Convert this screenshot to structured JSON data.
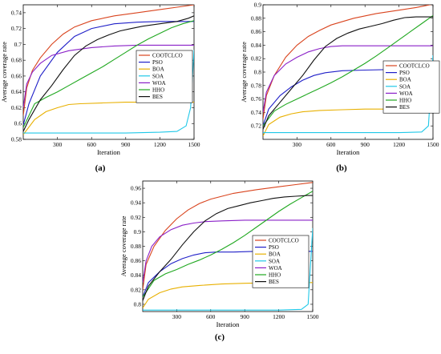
{
  "chart_data": [
    {
      "panel": "(a)",
      "type": "line",
      "xlabel": "Iteration",
      "ylabel": "Average coverage rate",
      "xlim": [
        0,
        1500
      ],
      "ylim": [
        0.58,
        0.75
      ],
      "xticks": [
        "300",
        "600",
        "900",
        "1200",
        "1500"
      ],
      "yticks": [
        "0.58",
        "0.6",
        "0.62",
        "0.64",
        "0.66",
        "0.68",
        "0.7",
        "0.72",
        "0.74"
      ],
      "legend_position": "right",
      "series": [
        {
          "name": "COOTCLCO",
          "color": "#d9441e",
          "x": [
            0,
            30,
            80,
            150,
            250,
            350,
            450,
            600,
            800,
            1000,
            1200,
            1350,
            1500
          ],
          "y": [
            0.61,
            0.645,
            0.667,
            0.683,
            0.7,
            0.713,
            0.722,
            0.73,
            0.736,
            0.74,
            0.744,
            0.747,
            0.75
          ]
        },
        {
          "name": "PSO",
          "color": "#2020c8",
          "x": [
            0,
            50,
            150,
            300,
            450,
            600,
            800,
            1000,
            1200,
            1500
          ],
          "y": [
            0.598,
            0.625,
            0.66,
            0.69,
            0.71,
            0.72,
            0.726,
            0.728,
            0.729,
            0.729
          ]
        },
        {
          "name": "BOA",
          "color": "#e8b000",
          "x": [
            0,
            100,
            200,
            300,
            400,
            500,
            700,
            900,
            1200,
            1500
          ],
          "y": [
            0.586,
            0.605,
            0.615,
            0.62,
            0.624,
            0.625,
            0.626,
            0.627,
            0.627,
            0.627
          ]
        },
        {
          "name": "SOA",
          "color": "#20c8e8",
          "x": [
            0,
            100,
            300,
            600,
            900,
            1200,
            1350,
            1430,
            1470,
            1500
          ],
          "y": [
            0.588,
            0.588,
            0.588,
            0.588,
            0.588,
            0.589,
            0.59,
            0.597,
            0.62,
            0.693
          ]
        },
        {
          "name": "WOA",
          "color": "#8a20c8",
          "x": [
            0,
            30,
            80,
            150,
            250,
            400,
            600,
            800,
            1000,
            1200,
            1500
          ],
          "y": [
            0.62,
            0.65,
            0.665,
            0.676,
            0.686,
            0.692,
            0.696,
            0.698,
            0.699,
            0.699,
            0.699
          ]
        },
        {
          "name": "HHO",
          "color": "#20a820",
          "x": [
            0,
            100,
            200,
            300,
            400,
            500,
            600,
            700,
            800,
            900,
            1000,
            1100,
            1200,
            1300,
            1400,
            1500
          ],
          "y": [
            0.595,
            0.625,
            0.633,
            0.64,
            0.648,
            0.656,
            0.664,
            0.672,
            0.681,
            0.69,
            0.699,
            0.707,
            0.714,
            0.721,
            0.726,
            0.73
          ]
        },
        {
          "name": "BES",
          "color": "#111111",
          "x": [
            0,
            50,
            150,
            250,
            350,
            450,
            550,
            650,
            750,
            850,
            950,
            1050,
            1150,
            1250,
            1350,
            1450,
            1500
          ],
          "y": [
            0.59,
            0.605,
            0.63,
            0.648,
            0.668,
            0.686,
            0.698,
            0.706,
            0.712,
            0.717,
            0.72,
            0.723,
            0.725,
            0.727,
            0.729,
            0.733,
            0.736
          ]
        }
      ]
    },
    {
      "panel": "(b)",
      "type": "line",
      "xlabel": "Iteration",
      "ylabel": "Average coverage rate",
      "xlim": [
        0,
        1500
      ],
      "ylim": [
        0.7,
        0.9
      ],
      "xticks": [
        "300",
        "600",
        "900",
        "1200",
        "1500"
      ],
      "yticks": [
        "0.72",
        "0.74",
        "0.76",
        "0.78",
        "0.8",
        "0.82",
        "0.84",
        "0.86",
        "0.88",
        "0.9"
      ],
      "legend_position": "right",
      "series": [
        {
          "name": "COOTCLCO",
          "color": "#d9441e",
          "x": [
            0,
            30,
            100,
            200,
            300,
            400,
            500,
            600,
            800,
            1000,
            1200,
            1350,
            1500
          ],
          "y": [
            0.73,
            0.765,
            0.795,
            0.822,
            0.84,
            0.853,
            0.862,
            0.87,
            0.88,
            0.887,
            0.892,
            0.896,
            0.901
          ]
        },
        {
          "name": "PSO",
          "color": "#2020c8",
          "x": [
            0,
            50,
            150,
            250,
            350,
            450,
            550,
            700,
            900,
            1200,
            1500
          ],
          "y": [
            0.72,
            0.745,
            0.765,
            0.778,
            0.788,
            0.795,
            0.799,
            0.802,
            0.803,
            0.804,
            0.804
          ]
        },
        {
          "name": "BOA",
          "color": "#e8b000",
          "x": [
            0,
            50,
            150,
            250,
            350,
            500,
            700,
            900,
            1200,
            1500
          ],
          "y": [
            0.705,
            0.722,
            0.733,
            0.738,
            0.741,
            0.743,
            0.744,
            0.745,
            0.745,
            0.745
          ]
        },
        {
          "name": "SOA",
          "color": "#20c8e8",
          "x": [
            0,
            100,
            400,
            800,
            1200,
            1400,
            1460,
            1500
          ],
          "y": [
            0.71,
            0.71,
            0.71,
            0.71,
            0.71,
            0.711,
            0.72,
            0.825
          ]
        },
        {
          "name": "WOA",
          "color": "#8a20c8",
          "x": [
            0,
            30,
            100,
            200,
            300,
            400,
            500,
            600,
            700,
            900,
            1200,
            1500
          ],
          "y": [
            0.74,
            0.77,
            0.795,
            0.812,
            0.822,
            0.83,
            0.835,
            0.838,
            0.839,
            0.839,
            0.839,
            0.839
          ]
        },
        {
          "name": "HHO",
          "color": "#20a820",
          "x": [
            0,
            100,
            200,
            300,
            400,
            500,
            600,
            700,
            800,
            900,
            1000,
            1100,
            1200,
            1300,
            1400,
            1500
          ],
          "y": [
            0.72,
            0.742,
            0.752,
            0.76,
            0.768,
            0.776,
            0.784,
            0.793,
            0.803,
            0.813,
            0.824,
            0.836,
            0.848,
            0.86,
            0.872,
            0.884
          ]
        },
        {
          "name": "BES",
          "color": "#111111",
          "x": [
            0,
            50,
            150,
            250,
            350,
            450,
            550,
            650,
            750,
            850,
            950,
            1050,
            1150,
            1250,
            1350,
            1450,
            1500
          ],
          "y": [
            0.715,
            0.735,
            0.755,
            0.775,
            0.795,
            0.818,
            0.838,
            0.85,
            0.858,
            0.864,
            0.868,
            0.872,
            0.877,
            0.881,
            0.882,
            0.882,
            0.882
          ]
        }
      ]
    },
    {
      "panel": "(c)",
      "type": "line",
      "xlabel": "Iteration",
      "ylabel": "Average coverage rate",
      "xlim": [
        0,
        1500
      ],
      "ylim": [
        0.79,
        0.97
      ],
      "xticks": [
        "300",
        "600",
        "900",
        "1200",
        "1500"
      ],
      "yticks": [
        "0.8",
        "0.82",
        "0.84",
        "0.86",
        "0.88",
        "0.9",
        "0.92",
        "0.94",
        "0.96"
      ],
      "legend_position": "right",
      "series": [
        {
          "name": "COOTCLCO",
          "color": "#d9441e",
          "x": [
            0,
            30,
            100,
            200,
            300,
            400,
            500,
            600,
            800,
            1000,
            1200,
            1350,
            1500
          ],
          "y": [
            0.82,
            0.855,
            0.88,
            0.902,
            0.918,
            0.93,
            0.939,
            0.945,
            0.953,
            0.958,
            0.962,
            0.965,
            0.968
          ]
        },
        {
          "name": "PSO",
          "color": "#2020c8",
          "x": [
            0,
            50,
            150,
            250,
            350,
            450,
            550,
            650,
            800,
            1000,
            1200,
            1500
          ],
          "y": [
            0.81,
            0.83,
            0.845,
            0.856,
            0.863,
            0.868,
            0.871,
            0.872,
            0.872,
            0.873,
            0.873,
            0.873
          ]
        },
        {
          "name": "BOA",
          "color": "#e8b000",
          "x": [
            0,
            50,
            150,
            250,
            350,
            500,
            700,
            900,
            1200,
            1500
          ],
          "y": [
            0.795,
            0.807,
            0.816,
            0.821,
            0.824,
            0.826,
            0.828,
            0.829,
            0.83,
            0.83
          ]
        },
        {
          "name": "SOA",
          "color": "#20c8e8",
          "x": [
            0,
            100,
            400,
            800,
            1200,
            1400,
            1460,
            1500
          ],
          "y": [
            0.792,
            0.792,
            0.792,
            0.792,
            0.792,
            0.793,
            0.8,
            0.905
          ]
        },
        {
          "name": "WOA",
          "color": "#8a20c8",
          "x": [
            0,
            30,
            80,
            150,
            250,
            350,
            450,
            550,
            700,
            900,
            1200,
            1500
          ],
          "y": [
            0.83,
            0.86,
            0.88,
            0.893,
            0.903,
            0.909,
            0.912,
            0.914,
            0.915,
            0.916,
            0.916,
            0.916
          ]
        },
        {
          "name": "HHO",
          "color": "#20a820",
          "x": [
            0,
            100,
            200,
            300,
            400,
            500,
            600,
            700,
            800,
            900,
            1000,
            1100,
            1200,
            1300,
            1400,
            1500
          ],
          "y": [
            0.81,
            0.833,
            0.842,
            0.848,
            0.855,
            0.861,
            0.868,
            0.876,
            0.885,
            0.895,
            0.906,
            0.917,
            0.928,
            0.938,
            0.947,
            0.956
          ]
        },
        {
          "name": "BES",
          "color": "#111111",
          "x": [
            0,
            50,
            150,
            250,
            350,
            450,
            550,
            650,
            750,
            850,
            950,
            1050,
            1150,
            1250,
            1350,
            1450,
            1500
          ],
          "y": [
            0.805,
            0.825,
            0.845,
            0.862,
            0.882,
            0.9,
            0.915,
            0.925,
            0.932,
            0.936,
            0.94,
            0.943,
            0.946,
            0.948,
            0.949,
            0.95,
            0.95
          ]
        }
      ]
    }
  ]
}
